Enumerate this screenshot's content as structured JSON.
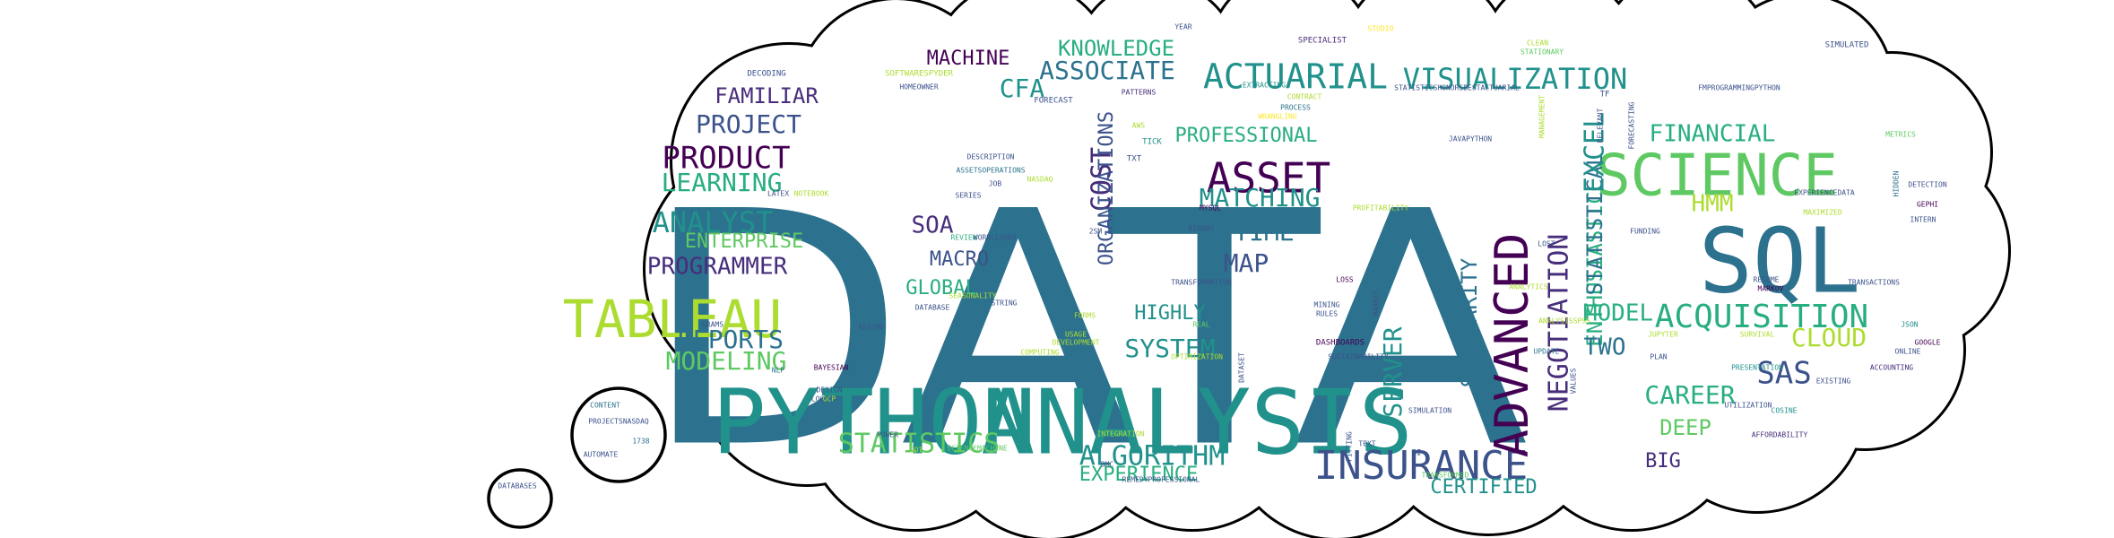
{
  "colors": {
    "bg": "#ffffff",
    "cloud_stroke": "#000000",
    "palette": [
      "#2c728e",
      "#440154",
      "#3b528b",
      "#21918c",
      "#28ae80",
      "#5ec962",
      "#addc30",
      "#fde725",
      "#472d7b",
      "#1f9e89",
      "#35b779",
      "#90d743"
    ]
  },
  "words": [
    "DATA",
    "PYTHON",
    "ANALYSIS",
    "SQL",
    "SCIENCE",
    "TABLEAU",
    "INSURANCE",
    "ACTUARIAL",
    "VISUALIZATION",
    "ASSET",
    "ADVANCED",
    "ACQUISITION",
    "PRODUCT",
    "PROJECT",
    "FAMILIAR",
    "MACHINE",
    "KNOWLEDGE",
    "ASSOCIATE",
    "CFA",
    "COST",
    "LEARNING",
    "ANALYST",
    "ENTERPRISE",
    "PROGRAMMER",
    "REPORTS",
    "MODELING",
    "SOA",
    "MACRO",
    "GLOBAL",
    "MATCHING",
    "TIME",
    "MAP",
    "HIGHLY",
    "SYSTEM",
    "SERVER",
    "ALGORITHM",
    "STATISTICS",
    "EXPERIENCE",
    "CERTIFIED",
    "SIMILARITY",
    "NEGOTIATION",
    "ENTHUSIASTIC",
    "STATISTICAL",
    "EXCEL",
    "FINANCIAL",
    "HMM",
    "MODEL",
    "TWO",
    "CLOUD",
    "SAS",
    "CAREER",
    "DEEP",
    "BIG",
    "PROFESSIONAL",
    "ORGANIZATIONS",
    "DECODING",
    "SOFTWARESPYDER",
    "HOMEOWNER",
    "FORECAST",
    "PATTERNS",
    "YEAR",
    "SPECIALIST",
    "STUDIO",
    "CLEAN",
    "STATIONARY",
    "SIMULATED",
    "EXTRACTING",
    "CONTRACT",
    "PROCESS",
    "WRANGLING",
    "STATISTICSHONORSBESTACTUARIAL",
    "FMPROGRAMMINGPYTHON",
    "TF",
    "RELEVANT",
    "FORECASTING",
    "MANAGEMENT",
    "AWS",
    "TICK",
    "TXT",
    "JAVAPYTHON",
    "METRICS",
    "DESCRIPTION",
    "ASSETSOPERATIONS",
    "JOB",
    "NASDAQ",
    "SERIES",
    "LATEX",
    "NOTEBOOK",
    "REVIEW",
    "WORDCLOUDS",
    "MYSQL",
    "BINARY",
    "PROFITABILITY",
    "CORE",
    "LOST",
    "FUNDING",
    "DETECTION",
    "GEPHI",
    "EXPERIENCEDATA",
    "HIDDEN",
    "MAXIMIZED",
    "INTERN",
    "2SM",
    "SEASONALITY",
    "DATABASE",
    "STRING",
    "TRANSFORMATION",
    "MINING",
    "RULES",
    "LOSS",
    "MARKET",
    "ANALYTICS",
    "RESUME",
    "MARKOV",
    "TRANSACTIONS",
    "GRAMS",
    "REGIME",
    "FORMS",
    "REAL",
    "USAGE",
    "DEVELOPMENT",
    "COMPUTING",
    "OPTIMIZATION",
    "DASHBOARDS",
    "SUSTAINABILITY",
    "ANALYSISSPSS",
    "JUPYTER",
    "SURVIVAL",
    "JSON",
    "GOOGLE",
    "ONLINE",
    "UPDATE",
    "PLAN",
    "PRESENTATION",
    "ACCOUNTING",
    "EXISTING",
    "NLP",
    "BAYESIAN",
    "DESIGN",
    "LOG",
    "GCP",
    "POWER",
    "INTEGRATION",
    "IOT",
    "SCIENCEMACHINE",
    "BMC",
    "REMEDYPROFESSIONAL",
    "DATASET",
    "SIMULATION",
    "TEXT",
    "FITTING",
    "BI",
    "TRANSFORMED",
    "VALUES",
    "UTILIZATION",
    "COSINE",
    "AFFORDABILITY",
    "CONTENT",
    "PROJECTSNASDAQ",
    "1738",
    "AUTOMATE",
    "DATABASES"
  ]
}
